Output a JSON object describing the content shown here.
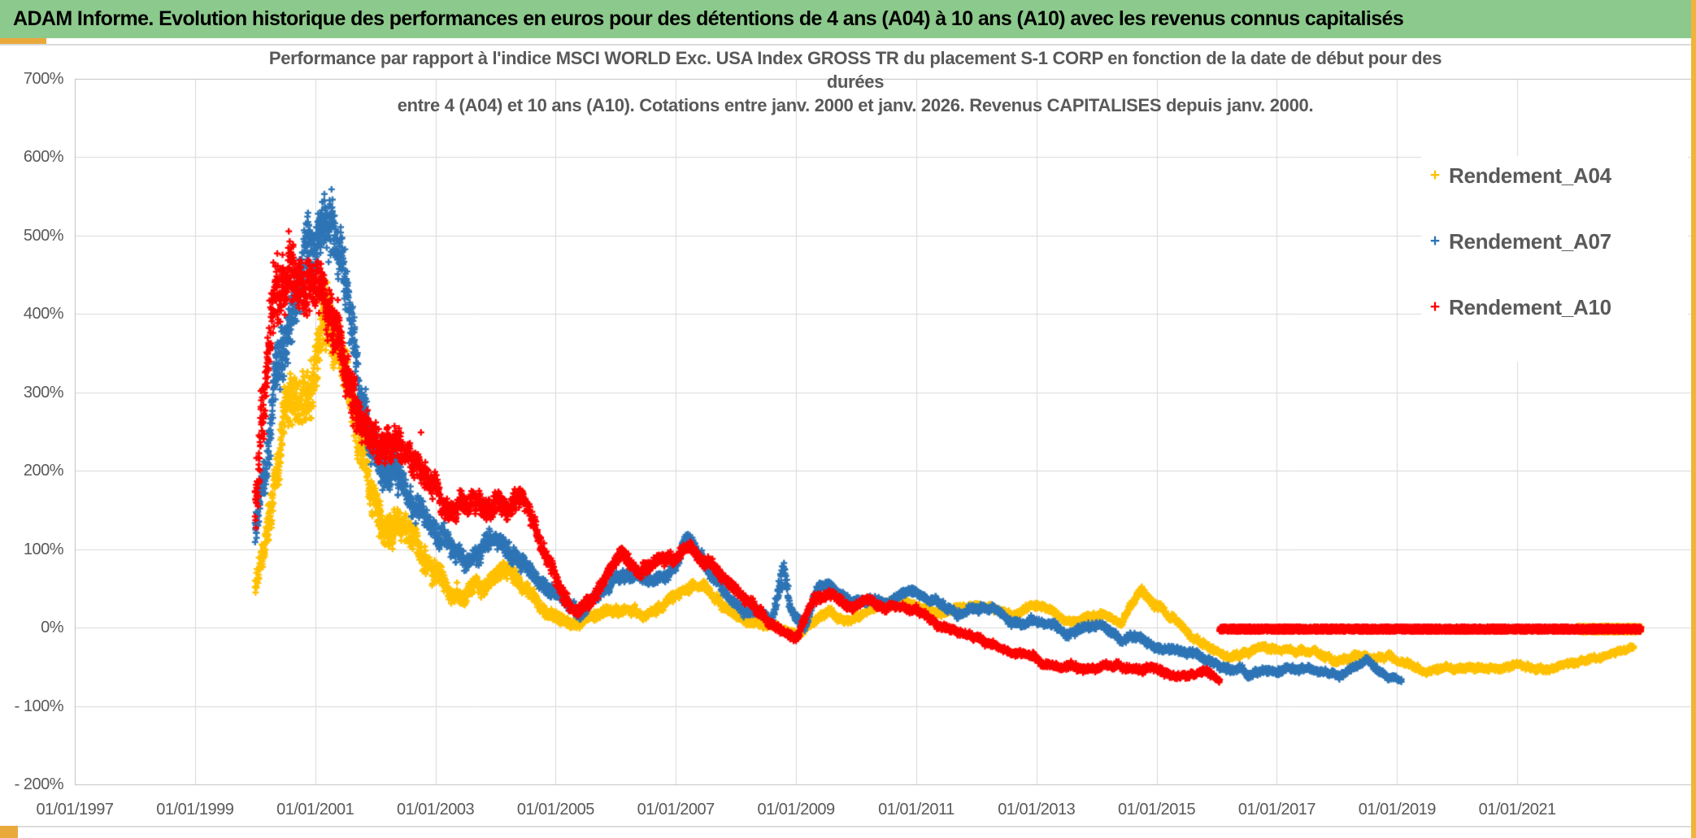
{
  "window": {
    "title_bar": "ADAM Informe. Evolution historique des performances en euros pour des détentions de 4 ans (A04) à 10 ans (A10) avec les revenus connus capitalisés"
  },
  "theme": {
    "header_green": "#8CC98C",
    "accent_gold": "#E9A93B",
    "right_strip_gold": "#F2B33C",
    "text_gray": "#595959",
    "grid_gray": "#D9D9D9",
    "axis_border_gray": "#BFBFBF"
  },
  "chart_data": {
    "type": "scatter",
    "marker": "plus",
    "title_lines": [
      "Performance par rapport à l'indice MSCI WORLD Exc. USA Index GROSS TR  du placement S-1 CORP en fonction de la date de début pour des",
      "durées",
      "entre 4 (A04) et 10 ans (A10). Cotations entre janv. 2000 et janv. 2026. Revenus CAPITALISES depuis janv. 2000."
    ],
    "legend_position": "right",
    "grid": true,
    "x_tick_labels": [
      "01/01/1997",
      "01/01/1999",
      "01/01/2001",
      "01/01/2003",
      "01/01/2005",
      "01/01/2007",
      "01/01/2009",
      "01/01/2011",
      "01/01/2013",
      "01/01/2015",
      "01/01/2017",
      "01/01/2019",
      "01/01/2021"
    ],
    "x_axis_years": [
      1997,
      1999,
      2001,
      2003,
      2005,
      2007,
      2009,
      2011,
      2013,
      2015,
      2017,
      2019,
      2021
    ],
    "y_tick_labels": [
      "700%",
      "600%",
      "500%",
      "400%",
      "300%",
      "200%",
      "100%",
      "0%",
      "- 100%",
      "- 200%"
    ],
    "y_axis_values": [
      700,
      600,
      500,
      400,
      300,
      200,
      100,
      0,
      -100,
      -200
    ],
    "axis": {
      "x_min_year": 1997,
      "x_max_year": 2023.92,
      "y_min_pct": -200,
      "y_max_pct": 700
    },
    "series": [
      {
        "name": "Rendement_A04",
        "color": "#FFC000",
        "start_year": 2000.0,
        "end_year": 2022.94,
        "flat_zero_segment": [
          2022.0,
          2023.06
        ],
        "band_path": [
          [
            2000.0,
            55,
            25
          ],
          [
            2000.25,
            150,
            55
          ],
          [
            2000.5,
            240,
            65
          ],
          [
            2000.75,
            300,
            65
          ],
          [
            2001.0,
            355,
            70
          ],
          [
            2001.2,
            390,
            80
          ],
          [
            2001.4,
            320,
            65
          ],
          [
            2001.65,
            245,
            60
          ],
          [
            2001.9,
            175,
            50
          ],
          [
            2002.15,
            130,
            45
          ],
          [
            2002.45,
            105,
            40
          ],
          [
            2002.7,
            95,
            35
          ],
          [
            2002.95,
            80,
            30
          ],
          [
            2003.2,
            60,
            25
          ],
          [
            2003.5,
            48,
            20
          ],
          [
            2003.8,
            62,
            22
          ],
          [
            2004.1,
            75,
            22
          ],
          [
            2004.4,
            55,
            18
          ],
          [
            2004.7,
            32,
            15
          ],
          [
            2005.0,
            12,
            15
          ],
          [
            2005.3,
            0,
            12
          ],
          [
            2005.6,
            8,
            12
          ],
          [
            2005.9,
            16,
            12
          ],
          [
            2006.2,
            24,
            12
          ],
          [
            2006.5,
            16,
            10
          ],
          [
            2006.8,
            26,
            10
          ],
          [
            2007.1,
            46,
            12
          ],
          [
            2007.35,
            56,
            12
          ],
          [
            2007.6,
            42,
            12
          ],
          [
            2007.9,
            26,
            10
          ],
          [
            2008.2,
            12,
            10
          ],
          [
            2008.5,
            2,
            10
          ],
          [
            2008.8,
            -8,
            8
          ],
          [
            2009.05,
            -5,
            8
          ],
          [
            2009.3,
            14,
            10
          ],
          [
            2009.6,
            20,
            9
          ],
          [
            2009.9,
            12,
            8
          ],
          [
            2010.2,
            18,
            8
          ],
          [
            2010.5,
            26,
            8
          ],
          [
            2010.8,
            36,
            9
          ],
          [
            2011.1,
            30,
            8
          ],
          [
            2011.4,
            22,
            8
          ],
          [
            2011.7,
            28,
            8
          ],
          [
            2012.0,
            33,
            8
          ],
          [
            2012.3,
            28,
            8
          ],
          [
            2012.6,
            20,
            8
          ],
          [
            2012.9,
            29,
            8
          ],
          [
            2013.2,
            22,
            8
          ],
          [
            2013.5,
            8,
            8
          ],
          [
            2013.8,
            16,
            8
          ],
          [
            2014.1,
            22,
            8
          ],
          [
            2014.4,
            10,
            8
          ],
          [
            2014.75,
            45,
            10
          ],
          [
            2015.0,
            25,
            10
          ],
          [
            2015.3,
            5,
            9
          ],
          [
            2015.6,
            -15,
            9
          ],
          [
            2015.9,
            -32,
            8
          ],
          [
            2016.2,
            -43,
            8
          ],
          [
            2016.5,
            -36,
            8
          ],
          [
            2016.8,
            -28,
            8
          ],
          [
            2017.1,
            -33,
            8
          ],
          [
            2017.4,
            -30,
            8
          ],
          [
            2017.7,
            -33,
            8
          ],
          [
            2018.0,
            -41,
            8
          ],
          [
            2018.3,
            -36,
            8
          ],
          [
            2018.6,
            -41,
            8
          ],
          [
            2018.9,
            -38,
            8
          ],
          [
            2019.2,
            -48,
            8
          ],
          [
            2019.5,
            -53,
            7
          ],
          [
            2019.8,
            -50,
            7
          ],
          [
            2020.1,
            -56,
            7
          ],
          [
            2020.4,
            -53,
            7
          ],
          [
            2020.7,
            -56,
            7
          ],
          [
            2021.0,
            -51,
            7
          ],
          [
            2021.3,
            -56,
            7
          ],
          [
            2021.6,
            -53,
            7
          ],
          [
            2021.9,
            -50,
            7
          ],
          [
            2022.2,
            -44,
            7
          ],
          [
            2022.5,
            -37,
            6
          ],
          [
            2022.94,
            -28,
            6
          ]
        ]
      },
      {
        "name": "Rendement_A07",
        "color": "#2E75B6",
        "start_year": 2000.0,
        "end_year": 2019.08,
        "band_path": [
          [
            2000.0,
            115,
            40
          ],
          [
            2000.3,
            260,
            70
          ],
          [
            2000.6,
            390,
            80
          ],
          [
            2000.9,
            450,
            70
          ],
          [
            2001.1,
            470,
            70
          ],
          [
            2001.3,
            495,
            75
          ],
          [
            2001.5,
            425,
            70
          ],
          [
            2001.7,
            335,
            60
          ],
          [
            2001.9,
            255,
            50
          ],
          [
            2002.15,
            205,
            45
          ],
          [
            2002.45,
            175,
            40
          ],
          [
            2002.7,
            145,
            35
          ],
          [
            2003.0,
            120,
            30
          ],
          [
            2003.3,
            92,
            25
          ],
          [
            2003.6,
            102,
            25
          ],
          [
            2003.9,
            120,
            25
          ],
          [
            2004.2,
            105,
            22
          ],
          [
            2004.5,
            92,
            20
          ],
          [
            2004.8,
            62,
            18
          ],
          [
            2005.1,
            46,
            15
          ],
          [
            2005.4,
            22,
            12
          ],
          [
            2005.7,
            36,
            12
          ],
          [
            2006.0,
            56,
            14
          ],
          [
            2006.3,
            62,
            14
          ],
          [
            2006.6,
            52,
            12
          ],
          [
            2006.9,
            62,
            12
          ],
          [
            2007.2,
            112,
            16
          ],
          [
            2007.45,
            88,
            14
          ],
          [
            2007.7,
            62,
            14
          ],
          [
            2008.0,
            36,
            12
          ],
          [
            2008.3,
            16,
            12
          ],
          [
            2008.6,
            6,
            12
          ],
          [
            2008.78,
            55,
            35
          ],
          [
            2008.95,
            15,
            12
          ],
          [
            2009.15,
            -5,
            10
          ],
          [
            2009.35,
            45,
            12
          ],
          [
            2009.6,
            50,
            10
          ],
          [
            2009.9,
            36,
            10
          ],
          [
            2010.2,
            41,
            10
          ],
          [
            2010.5,
            31,
            10
          ],
          [
            2010.8,
            46,
            10
          ],
          [
            2011.1,
            39,
            9
          ],
          [
            2011.4,
            26,
            9
          ],
          [
            2011.7,
            16,
            9
          ],
          [
            2012.0,
            19,
            9
          ],
          [
            2012.3,
            26,
            9
          ],
          [
            2012.6,
            6,
            9
          ],
          [
            2012.9,
            13,
            9
          ],
          [
            2013.2,
            9,
            9
          ],
          [
            2013.5,
            -12,
            9
          ],
          [
            2013.8,
            -5,
            9
          ],
          [
            2014.1,
            -2,
            9
          ],
          [
            2014.4,
            -20,
            9
          ],
          [
            2014.7,
            -15,
            9
          ],
          [
            2015.0,
            -28,
            9
          ],
          [
            2015.3,
            -35,
            9
          ],
          [
            2015.6,
            -30,
            9
          ],
          [
            2015.9,
            -40,
            9
          ],
          [
            2016.2,
            -50,
            9
          ],
          [
            2016.5,
            -60,
            8
          ],
          [
            2016.8,
            -55,
            8
          ],
          [
            2017.1,
            -58,
            8
          ],
          [
            2017.4,
            -52,
            8
          ],
          [
            2017.7,
            -55,
            8
          ],
          [
            2018.0,
            -62,
            8
          ],
          [
            2018.3,
            -55,
            8
          ],
          [
            2018.5,
            -45,
            8
          ],
          [
            2018.7,
            -56,
            8
          ],
          [
            2019.08,
            -66,
            6
          ]
        ]
      },
      {
        "name": "Rendement_A10",
        "color": "#FF0000",
        "start_year": 2000.0,
        "end_year": 2016.05,
        "flat_zero_segment": [
          2016.05,
          2023.06
        ],
        "outliers": [
          [
            2002.76,
            249
          ]
        ],
        "band_path": [
          [
            2000.0,
            150,
            85
          ],
          [
            2000.3,
            390,
            100
          ],
          [
            2000.55,
            505,
            80
          ],
          [
            2000.8,
            465,
            70
          ],
          [
            2001.0,
            475,
            60
          ],
          [
            2001.2,
            435,
            70
          ],
          [
            2001.45,
            380,
            65
          ],
          [
            2001.7,
            305,
            60
          ],
          [
            2001.9,
            268,
            45
          ],
          [
            2002.15,
            232,
            42
          ],
          [
            2002.45,
            205,
            40
          ],
          [
            2002.7,
            188,
            35
          ],
          [
            2003.0,
            168,
            30
          ],
          [
            2003.3,
            142,
            28
          ],
          [
            2003.6,
            152,
            30
          ],
          [
            2003.9,
            142,
            30
          ],
          [
            2004.2,
            162,
            28
          ],
          [
            2004.45,
            168,
            25
          ],
          [
            2004.7,
            115,
            22
          ],
          [
            2005.0,
            52,
            20
          ],
          [
            2005.3,
            27,
            15
          ],
          [
            2005.6,
            42,
            15
          ],
          [
            2005.9,
            82,
            16
          ],
          [
            2006.1,
            106,
            16
          ],
          [
            2006.4,
            78,
            15
          ],
          [
            2006.7,
            92,
            15
          ],
          [
            2007.0,
            96,
            14
          ],
          [
            2007.3,
            92,
            14
          ],
          [
            2007.55,
            78,
            14
          ],
          [
            2007.8,
            56,
            13
          ],
          [
            2008.1,
            32,
            12
          ],
          [
            2008.4,
            16,
            12
          ],
          [
            2008.7,
            6,
            10
          ],
          [
            2009.0,
            -8,
            10
          ],
          [
            2009.3,
            40,
            12
          ],
          [
            2009.6,
            46,
            10
          ],
          [
            2009.9,
            31,
            10
          ],
          [
            2010.2,
            36,
            10
          ],
          [
            2010.5,
            23,
            9
          ],
          [
            2010.8,
            29,
            9
          ],
          [
            2011.1,
            16,
            9
          ],
          [
            2011.4,
            6,
            9
          ],
          [
            2011.7,
            -8,
            9
          ],
          [
            2012.0,
            -16,
            8
          ],
          [
            2012.3,
            -26,
            8
          ],
          [
            2012.6,
            -36,
            8
          ],
          [
            2012.9,
            -39,
            8
          ],
          [
            2013.2,
            -43,
            8
          ],
          [
            2013.5,
            -46,
            8
          ],
          [
            2013.8,
            -49,
            8
          ],
          [
            2014.1,
            -46,
            8
          ],
          [
            2014.4,
            -53,
            8
          ],
          [
            2014.7,
            -56,
            8
          ],
          [
            2015.0,
            -53,
            8
          ],
          [
            2015.3,
            -59,
            8
          ],
          [
            2015.6,
            -56,
            8
          ],
          [
            2015.9,
            -61,
            8
          ],
          [
            2016.05,
            -65,
            6
          ]
        ]
      }
    ]
  }
}
